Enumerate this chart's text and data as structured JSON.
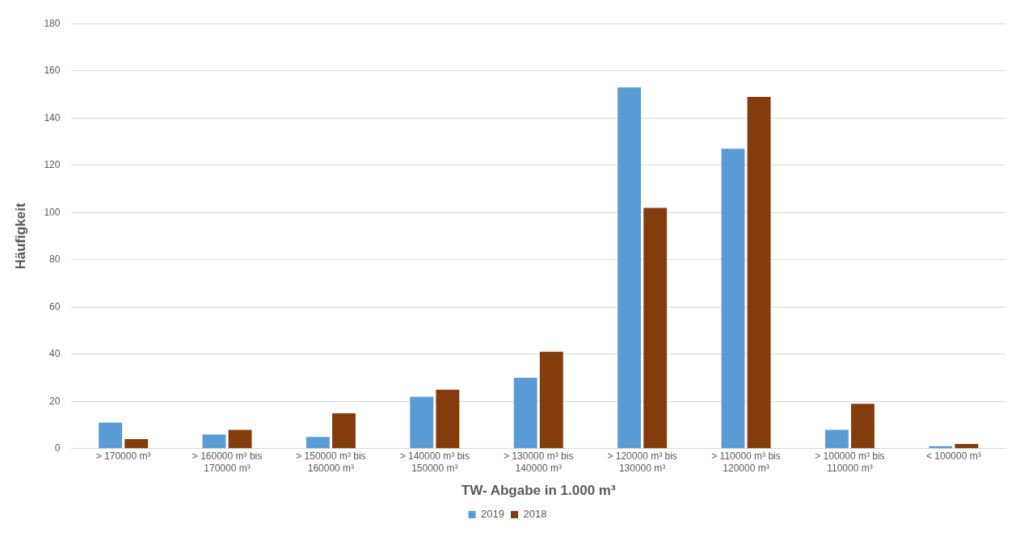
{
  "chart_data": {
    "type": "bar",
    "xlabel": "TW- Abgabe in 1.000 m³",
    "ylabel": "Häufigkeit",
    "categories": [
      "> 170000 m³",
      "> 160000 m³ bis 170000 m³",
      "> 150000 m³ bis 160000 m³",
      "> 140000 m³ bis 150000 m³",
      "> 130000 m³ bis 140000 m³",
      "> 120000 m³ bis 130000 m³",
      "> 110000 m³ bis 120000 m³",
      "> 100000 m³ bis 110000 m³",
      "< 100000 m³"
    ],
    "series": [
      {
        "name": "2019",
        "color": "#5b9bd5",
        "values": [
          11,
          6,
          5,
          22,
          30,
          153,
          127,
          8,
          1
        ]
      },
      {
        "name": "2018",
        "color": "#843c0c",
        "values": [
          4,
          8,
          15,
          25,
          41,
          102,
          149,
          19,
          2
        ]
      }
    ],
    "ylim": [
      0,
      180
    ],
    "yticks": [
      0,
      20,
      40,
      60,
      80,
      100,
      120,
      140,
      160,
      180
    ],
    "grid": "y",
    "legend": "bottom"
  }
}
